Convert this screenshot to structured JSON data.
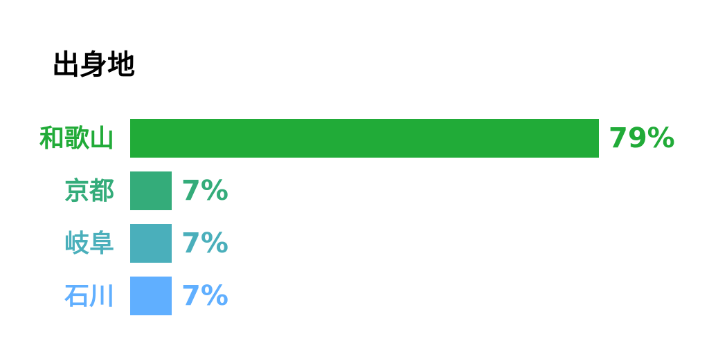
{
  "chart_data": {
    "type": "bar",
    "orientation": "horizontal",
    "title": "出身地",
    "categories": [
      "和歌山",
      "京都",
      "岐阜",
      "石川"
    ],
    "values": [
      79,
      7,
      7,
      7
    ],
    "value_labels": [
      "79%",
      "7%",
      "7%",
      "7%"
    ],
    "colors": [
      "#21ab38",
      "#34ac7a",
      "#4aafbb",
      "#60afff"
    ]
  }
}
